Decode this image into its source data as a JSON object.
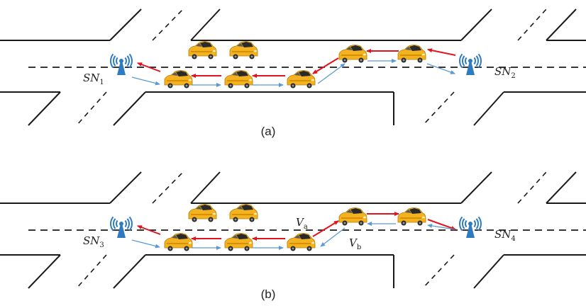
{
  "panels": [
    {
      "caption": "(a)",
      "left_node": {
        "label": "SN",
        "sub": "1"
      },
      "right_node": {
        "label": "SN",
        "sub": "2"
      },
      "vehicle_a": null,
      "vehicle_b": null
    },
    {
      "caption": "(b)",
      "left_node": {
        "label": "SN",
        "sub": "3"
      },
      "right_node": {
        "label": "SN",
        "sub": "4"
      },
      "vehicle_a": {
        "label": "V",
        "sub": "a"
      },
      "vehicle_b": {
        "label": "V",
        "sub": "b"
      }
    }
  ],
  "colors": {
    "road_line": "#1a1a1a",
    "car_body": "#f3b21f",
    "car_window": "#2a2a2a",
    "tower": "#2f7bc0",
    "arrow_red": "#e0141e",
    "arrow_blue": "#5b9bd5"
  },
  "icons": {
    "roadside_node": "wireless-tower-icon",
    "vehicle": "car-icon"
  }
}
